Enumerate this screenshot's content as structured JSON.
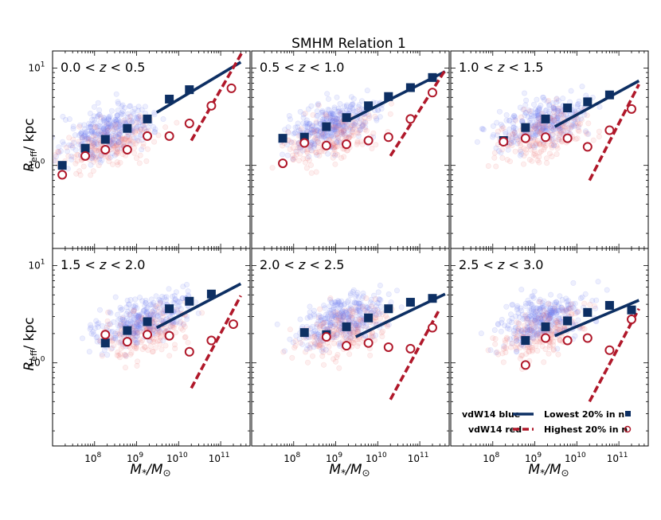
{
  "figure": {
    "title": "SMHM Relation 1",
    "ylabel_main": "R",
    "ylabel_sub": "eff",
    "ylabel_unit": "/ kpc",
    "xlabel_main": "M",
    "xlabel_sub": "*",
    "xlabel_unit": "/M",
    "xlabel_unit_sub": "⊙"
  },
  "legend": {
    "line_blue": "vdW14 blue",
    "line_red": "vdW14 red",
    "marker_blue": "Lowest 20% in n",
    "marker_red": "Highest 20% in n"
  },
  "colors": {
    "blue": "#0d2f63",
    "red": "#b0182a",
    "scatter_blue": "#6d7cf2",
    "scatter_red": "#f07b7b"
  },
  "chart_data": [
    {
      "type": "scatter",
      "label": "0.0 < z < 0.5",
      "xlim": [
        10000000,
        500000000000
      ],
      "ylim": [
        0.14,
        15
      ],
      "xscale": "log",
      "yscale": "log",
      "xticks": [
        "10^8",
        "10^9",
        "10^10",
        "10^11"
      ],
      "yticks": [
        "10^0",
        "10^1"
      ],
      "series": [
        {
          "name": "Lowest 20% in n",
          "marker": "filled-square",
          "x": [
            17000000,
            60000000,
            180000000,
            600000000,
            1800000000,
            6000000000,
            18000000000
          ],
          "y": [
            1.0,
            1.5,
            1.85,
            2.4,
            3.0,
            4.8,
            6.0
          ]
        },
        {
          "name": "Highest 20% in n",
          "marker": "open-circle",
          "x": [
            17000000,
            60000000,
            180000000,
            600000000,
            1800000000,
            6000000000,
            18000000000,
            60000000000,
            180000000000
          ],
          "y": [
            0.8,
            1.25,
            1.45,
            1.45,
            2.0,
            2.0,
            2.7,
            4.1,
            6.2
          ]
        },
        {
          "name": "vdW14 blue",
          "line": "solid",
          "x": [
            3000000000,
            300000000000
          ],
          "y": [
            3.5,
            11.5
          ]
        },
        {
          "name": "vdW14 red",
          "line": "dashed",
          "x": [
            20000000000,
            400000000000
          ],
          "y": [
            1.8,
            17
          ]
        }
      ]
    },
    {
      "type": "scatter",
      "label": "0.5 < z < 1.0",
      "xlim": [
        10000000,
        500000000000
      ],
      "ylim": [
        0.14,
        15
      ],
      "xscale": "log",
      "yscale": "log",
      "xticks": [
        "10^8",
        "10^9",
        "10^10",
        "10^11"
      ],
      "yticks": [],
      "series": [
        {
          "name": "Lowest 20% in n",
          "marker": "filled-square",
          "x": [
            55000000,
            180000000,
            600000000,
            1800000000,
            6000000000,
            18000000000,
            60000000000,
            200000000000
          ],
          "y": [
            1.9,
            1.95,
            2.5,
            3.1,
            4.1,
            5.1,
            6.3,
            8.0
          ]
        },
        {
          "name": "Highest 20% in n",
          "marker": "open-circle",
          "x": [
            55000000,
            180000000,
            600000000,
            1800000000,
            6000000000,
            18000000000,
            60000000000,
            200000000000
          ],
          "y": [
            1.05,
            1.7,
            1.6,
            1.65,
            1.8,
            1.95,
            3.0,
            5.6
          ]
        },
        {
          "name": "vdW14 blue",
          "line": "solid",
          "x": [
            2000000000,
            400000000000
          ],
          "y": [
            2.9,
            9.2
          ]
        },
        {
          "name": "vdW14 red",
          "line": "dashed",
          "x": [
            20000000000,
            400000000000
          ],
          "y": [
            1.25,
            9.5
          ]
        }
      ]
    },
    {
      "type": "scatter",
      "label": "1.0 < z < 1.5",
      "xlim": [
        10000000,
        500000000000
      ],
      "ylim": [
        0.14,
        15
      ],
      "xscale": "log",
      "yscale": "log",
      "xticks": [
        "10^8",
        "10^9",
        "10^10",
        "10^11"
      ],
      "yticks": [],
      "series": [
        {
          "name": "Lowest 20% in n",
          "marker": "filled-square",
          "x": [
            180000000,
            600000000,
            1800000000,
            6000000000,
            18000000000,
            60000000000
          ],
          "y": [
            1.8,
            2.45,
            3.0,
            3.9,
            4.5,
            5.3
          ]
        },
        {
          "name": "Highest 20% in n",
          "marker": "open-circle",
          "x": [
            180000000,
            600000000,
            1800000000,
            6000000000,
            18000000000,
            60000000000,
            200000000000
          ],
          "y": [
            1.75,
            1.9,
            1.95,
            1.9,
            1.55,
            2.3,
            3.8
          ]
        },
        {
          "name": "vdW14 blue",
          "line": "solid",
          "x": [
            3000000000,
            300000000000
          ],
          "y": [
            2.5,
            7.4
          ]
        },
        {
          "name": "vdW14 red",
          "line": "dashed",
          "x": [
            20000000000,
            300000000000
          ],
          "y": [
            0.7,
            6.8
          ]
        }
      ]
    },
    {
      "type": "scatter",
      "label": "1.5 < z < 2.0",
      "xlim": [
        10000000,
        500000000000
      ],
      "ylim": [
        0.14,
        15
      ],
      "xscale": "log",
      "yscale": "log",
      "xticks": [
        "10^8",
        "10^9",
        "10^10",
        "10^11"
      ],
      "yticks": [
        "10^0",
        "10^1"
      ],
      "series": [
        {
          "name": "Lowest 20% in n",
          "marker": "filled-square",
          "x": [
            180000000,
            600000000,
            1800000000,
            6000000000,
            18000000000,
            60000000000
          ],
          "y": [
            1.6,
            2.15,
            2.65,
            3.6,
            4.3,
            5.1
          ]
        },
        {
          "name": "Highest 20% in n",
          "marker": "open-circle",
          "x": [
            180000000,
            600000000,
            1800000000,
            6000000000,
            18000000000,
            60000000000,
            200000000000
          ],
          "y": [
            1.95,
            1.65,
            1.95,
            1.9,
            1.3,
            1.7,
            2.5
          ]
        },
        {
          "name": "vdW14 blue",
          "line": "solid",
          "x": [
            3000000000,
            300000000000
          ],
          "y": [
            2.3,
            6.5
          ]
        },
        {
          "name": "vdW14 red",
          "line": "dashed",
          "x": [
            20000000000,
            300000000000
          ],
          "y": [
            0.55,
            4.9
          ]
        }
      ]
    },
    {
      "type": "scatter",
      "label": "2.0 < z < 2.5",
      "xlim": [
        10000000,
        500000000000
      ],
      "ylim": [
        0.14,
        15
      ],
      "xscale": "log",
      "yscale": "log",
      "xticks": [
        "10^8",
        "10^9",
        "10^10",
        "10^11"
      ],
      "yticks": [],
      "series": [
        {
          "name": "Lowest 20% in n",
          "marker": "filled-square",
          "x": [
            180000000,
            600000000,
            1800000000,
            6000000000,
            18000000000,
            60000000000,
            200000000000
          ],
          "y": [
            2.05,
            1.95,
            2.35,
            2.9,
            3.6,
            4.2,
            4.6
          ]
        },
        {
          "name": "Highest 20% in n",
          "marker": "open-circle",
          "x": [
            600000000,
            1800000000,
            6000000000,
            18000000000,
            60000000000,
            200000000000
          ],
          "y": [
            1.85,
            1.5,
            1.6,
            1.45,
            1.4,
            2.3
          ]
        },
        {
          "name": "vdW14 blue",
          "line": "solid",
          "x": [
            3000000000,
            400000000000
          ],
          "y": [
            1.85,
            5.1
          ]
        },
        {
          "name": "vdW14 red",
          "line": "dashed",
          "x": [
            20000000000,
            300000000000
          ],
          "y": [
            0.42,
            3.6
          ]
        }
      ]
    },
    {
      "type": "scatter",
      "label": "2.5 < z < 3.0",
      "xlim": [
        10000000,
        500000000000
      ],
      "ylim": [
        0.14,
        15
      ],
      "xscale": "log",
      "yscale": "log",
      "xticks": [
        "10^8",
        "10^9",
        "10^10",
        "10^11"
      ],
      "yticks": [],
      "series": [
        {
          "name": "Lowest 20% in n",
          "marker": "filled-square",
          "x": [
            600000000,
            1800000000,
            6000000000,
            18000000000,
            60000000000,
            200000000000
          ],
          "y": [
            1.7,
            2.35,
            2.7,
            3.3,
            3.9,
            3.5
          ]
        },
        {
          "name": "Highest 20% in n",
          "marker": "open-circle",
          "x": [
            600000000,
            1800000000,
            6000000000,
            18000000000,
            60000000000,
            200000000000
          ],
          "y": [
            0.95,
            1.8,
            1.7,
            1.8,
            1.35,
            2.8
          ]
        },
        {
          "name": "vdW14 blue",
          "line": "solid",
          "x": [
            3000000000,
            300000000000
          ],
          "y": [
            1.9,
            4.4
          ]
        },
        {
          "name": "vdW14 red",
          "line": "dashed",
          "x": [
            20000000000,
            300000000000
          ],
          "y": [
            0.4,
            3.6
          ]
        }
      ]
    }
  ]
}
